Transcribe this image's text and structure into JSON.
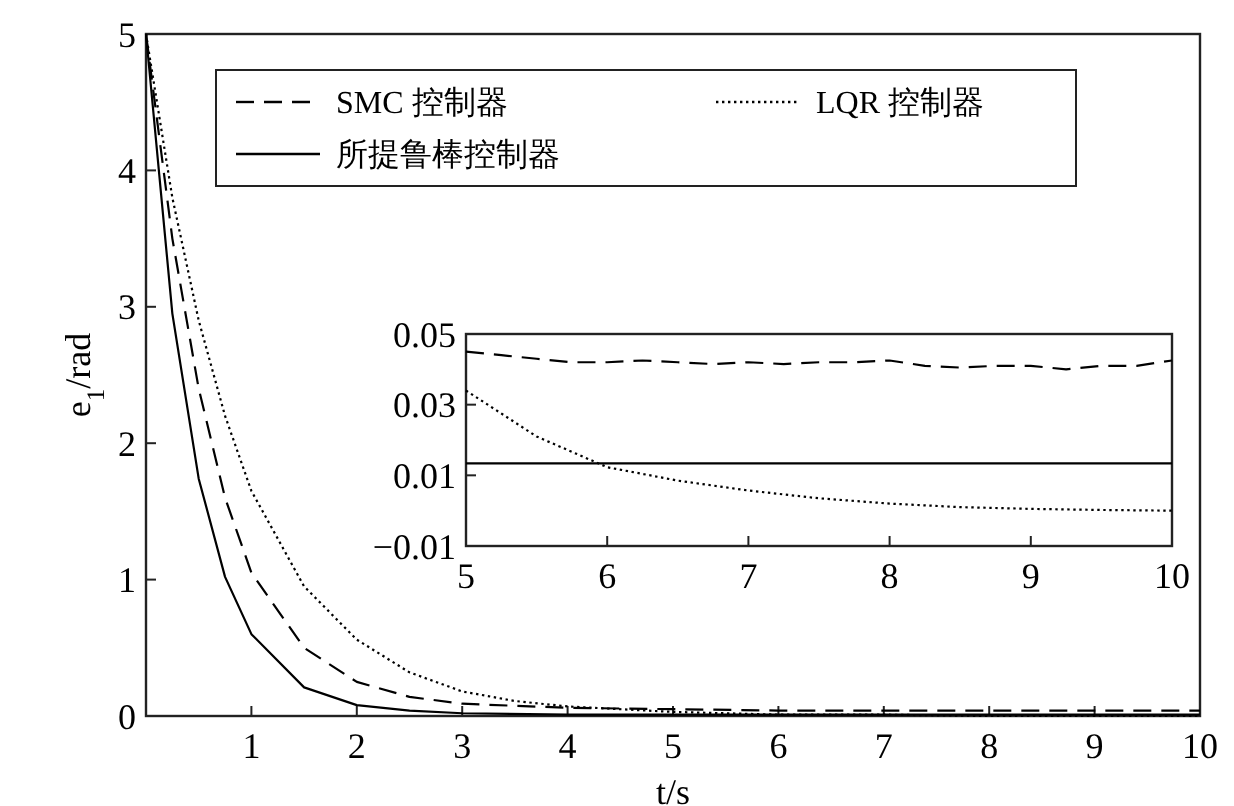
{
  "chart_data": [
    {
      "type": "line",
      "xlabel": "t/s",
      "ylabel": "e$_{1}$/rad",
      "xlim": [
        0,
        10
      ],
      "ylim": [
        0,
        5
      ],
      "xticks": [
        1,
        2,
        3,
        4,
        5,
        6,
        7,
        8,
        9,
        10
      ],
      "yticks": [
        0,
        1,
        2,
        3,
        4,
        5
      ],
      "legend": "top",
      "marker": "none",
      "grid": false,
      "series": [
        {
          "name": "SMC 控制器",
          "color": "#000000",
          "line_style": "dashed",
          "x": [
            0,
            0.25,
            0.5,
            0.75,
            1,
            1.5,
            2,
            2.5,
            3,
            4,
            5,
            6,
            7,
            8,
            9,
            10
          ],
          "values": [
            5,
            3.5,
            2.4,
            1.6,
            1.05,
            0.5,
            0.25,
            0.14,
            0.09,
            0.06,
            0.05,
            0.04,
            0.04,
            0.04,
            0.04,
            0.04
          ]
        },
        {
          "name": "LQR 控制器",
          "color": "#000000",
          "line_style": "dotted",
          "x": [
            0,
            0.25,
            0.5,
            0.75,
            1,
            1.5,
            2,
            2.5,
            3,
            3.5,
            4,
            5,
            6,
            7,
            8,
            10
          ],
          "values": [
            5,
            3.8,
            2.9,
            2.2,
            1.65,
            0.95,
            0.56,
            0.32,
            0.18,
            0.11,
            0.07,
            0.03,
            0.01,
            0.01,
            0,
            0
          ]
        },
        {
          "name": "所提鲁棒控制器",
          "color": "#000000",
          "line_style": "solid",
          "x": [
            0,
            0.25,
            0.5,
            0.75,
            1,
            1.5,
            2,
            2.5,
            3,
            4,
            5,
            10
          ],
          "values": [
            5,
            2.95,
            1.74,
            1.02,
            0.6,
            0.21,
            0.08,
            0.04,
            0.02,
            0.01,
            0.01,
            0.01
          ]
        }
      ]
    },
    {
      "type": "line",
      "xlim": [
        5,
        10
      ],
      "ylim": [
        -0.01,
        0.05
      ],
      "xticks": [
        5,
        6,
        7,
        8,
        9,
        10
      ],
      "yticks": [
        {
          "value": -0.01,
          "label": "−0.01"
        },
        0.01,
        0.03,
        0.05
      ],
      "marker": "none",
      "grid": false,
      "series": [
        {
          "color": "#000000",
          "line_style": "dashed",
          "x": [
            5,
            5.25,
            5.5,
            5.75,
            6,
            6.25,
            6.5,
            6.75,
            7,
            7.25,
            7.5,
            7.75,
            8,
            8.25,
            8.5,
            8.75,
            9,
            9.25,
            9.5,
            9.75,
            10
          ],
          "values": [
            0.045,
            0.044,
            0.043,
            0.042,
            0.042,
            0.0425,
            0.042,
            0.0415,
            0.042,
            0.0415,
            0.042,
            0.042,
            0.0425,
            0.041,
            0.0405,
            0.041,
            0.041,
            0.04,
            0.041,
            0.041,
            0.0425
          ]
        },
        {
          "color": "#000000",
          "line_style": "dotted",
          "x": [
            5,
            5.5,
            6,
            6.5,
            7,
            7.5,
            8,
            8.5,
            9,
            9.5,
            10
          ],
          "values": [
            0.034,
            0.021,
            0.0123,
            0.0085,
            0.0057,
            0.0035,
            0.002,
            0.001,
            0.0005,
            0.0002,
            0
          ]
        },
        {
          "color": "#000000",
          "line_style": "solid",
          "x": [
            5,
            10
          ],
          "values": [
            0.0134,
            0.0134
          ]
        }
      ]
    }
  ]
}
